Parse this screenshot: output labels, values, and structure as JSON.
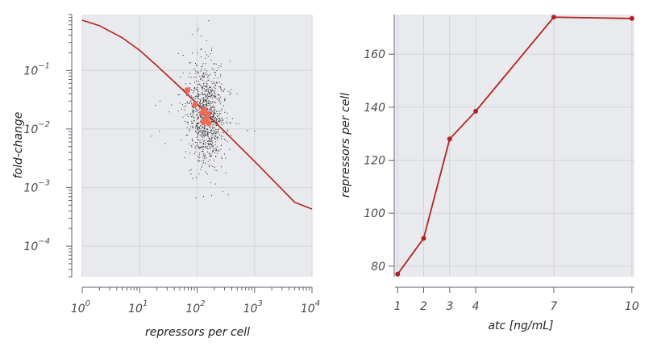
{
  "chart_data": [
    {
      "type": "scatter",
      "xlabel": "repressors per cell",
      "ylabel": "fold-change",
      "xscale": "log",
      "yscale": "log",
      "xlim": [
        1,
        10000
      ],
      "ylim": [
        3e-05,
        0.9
      ],
      "xticks": [
        1,
        10,
        100,
        1000,
        10000
      ],
      "yticks": [
        0.0001,
        0.001,
        0.01,
        0.1
      ],
      "grid": true,
      "colors": {
        "curve": "#b22222",
        "dots": "#222222",
        "means": "#ef6a55"
      },
      "series": [
        {
          "kind": "curve",
          "description": "fold-change vs repressors",
          "x": [
            1,
            2,
            5,
            10,
            20,
            50,
            100,
            200,
            500,
            1000,
            2000,
            5000,
            10000
          ],
          "y": [
            0.72,
            0.58,
            0.36,
            0.22,
            0.12,
            0.052,
            0.027,
            0.0135,
            0.0055,
            0.0028,
            0.0014,
            0.00056,
            0.00043
          ]
        },
        {
          "kind": "points",
          "x": [
            68,
            92,
            122,
            135,
            148,
            155,
            128,
            160,
            142
          ],
          "y": [
            0.046,
            0.026,
            0.019,
            0.021,
            0.016,
            0.018,
            0.013,
            0.0125,
            0.015
          ]
        }
      ],
      "cloud": {
        "n": 950,
        "center_x": 140,
        "center_y": 0.018,
        "spread_logx": 0.16,
        "spread_logy": 0.42
      }
    },
    {
      "type": "line",
      "xlabel": "atc [ng/mL]",
      "ylabel": "repressors per cell",
      "xticks": [
        1,
        2,
        3,
        4,
        7,
        10
      ],
      "yticks": [
        80,
        100,
        120,
        140,
        160
      ],
      "xlim": [
        0.9,
        10.1
      ],
      "ylim": [
        76,
        175
      ],
      "grid": true,
      "color": "#b22222",
      "x": [
        1,
        2,
        3,
        4,
        7,
        10
      ],
      "y": [
        77,
        90.5,
        128,
        138.5,
        174,
        173.5
      ]
    }
  ]
}
